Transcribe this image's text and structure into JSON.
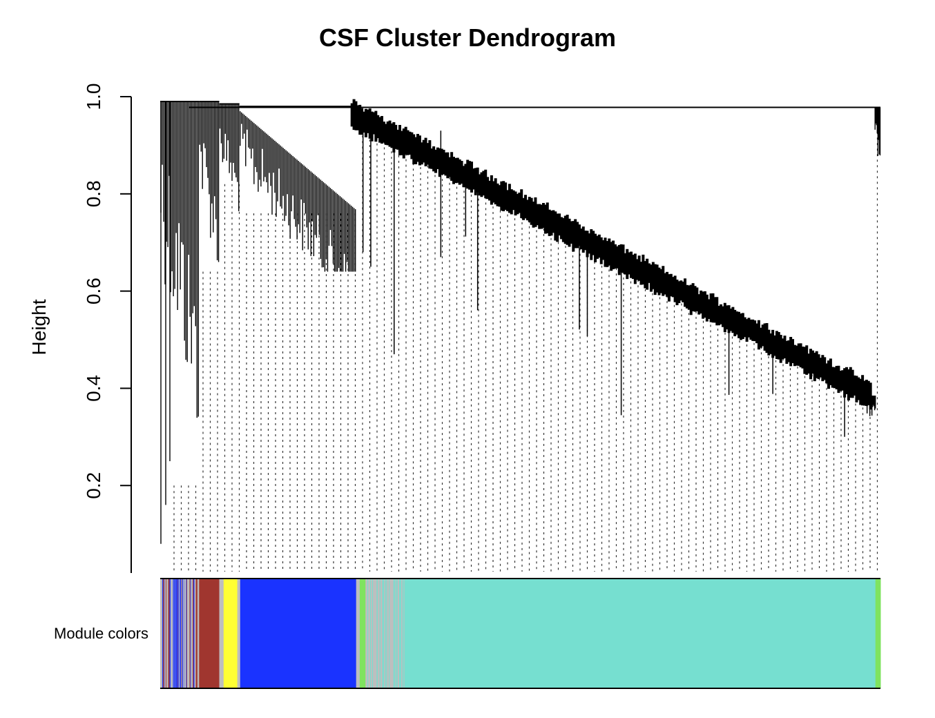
{
  "chart_data": {
    "type": "dendrogram",
    "title": "CSF Cluster Dendrogram",
    "xlabel": "",
    "ylabel": "Height",
    "ylim": [
      0.02,
      1.0
    ],
    "yticks": [
      "0.2",
      "0.4",
      "0.6",
      "0.8",
      "1.0"
    ],
    "ytick_values": [
      0.2,
      0.4,
      0.6,
      0.8,
      1.0
    ],
    "color_bar_label": "Module colors",
    "colors": {
      "grey": "#bebebe",
      "brown": "#a0362f",
      "yellow": "#ffff33",
      "blue": "#1a33ff",
      "green": "#7fe35f",
      "turquoise": "#76dfd0",
      "branch": "#000000"
    },
    "modules": [
      {
        "name": "grey",
        "start": 0.0,
        "end": 0.054
      },
      {
        "name": "brown",
        "start": 0.054,
        "end": 0.082
      },
      {
        "name": "grey",
        "start": 0.082,
        "end": 0.088
      },
      {
        "name": "yellow",
        "start": 0.088,
        "end": 0.107
      },
      {
        "name": "grey",
        "start": 0.107,
        "end": 0.111
      },
      {
        "name": "blue",
        "start": 0.111,
        "end": 0.272
      },
      {
        "name": "grey",
        "start": 0.272,
        "end": 0.277
      },
      {
        "name": "green",
        "start": 0.277,
        "end": 0.285
      },
      {
        "name": "grey",
        "start": 0.285,
        "end": 0.339
      },
      {
        "name": "turquoise",
        "start": 0.339,
        "end": 0.993
      },
      {
        "name": "green",
        "start": 0.993,
        "end": 1.0
      }
    ],
    "main_branches": [
      {
        "name": "grey-cluster",
        "start": 0.0,
        "end": 0.054,
        "merge_height": 0.99,
        "min_height": 0.08
      },
      {
        "name": "brown-cluster",
        "start": 0.054,
        "end": 0.082,
        "merge_height": 0.99,
        "min_height": 0.52
      },
      {
        "name": "yellow-cluster",
        "start": 0.082,
        "end": 0.11,
        "merge_height": 0.985,
        "min_height": 0.7
      },
      {
        "name": "blue-cluster",
        "start": 0.11,
        "end": 0.272,
        "merge_height": 0.98,
        "min_height": 0.64
      },
      {
        "name": "turquoise-cluster",
        "start": 0.272,
        "end": 0.992,
        "merge_height": 0.978,
        "min_height": 0.34
      },
      {
        "name": "green-cluster",
        "start": 0.992,
        "end": 1.0,
        "merge_height": 0.978,
        "min_height": 0.83
      }
    ],
    "top_merge_height": 0.978
  }
}
